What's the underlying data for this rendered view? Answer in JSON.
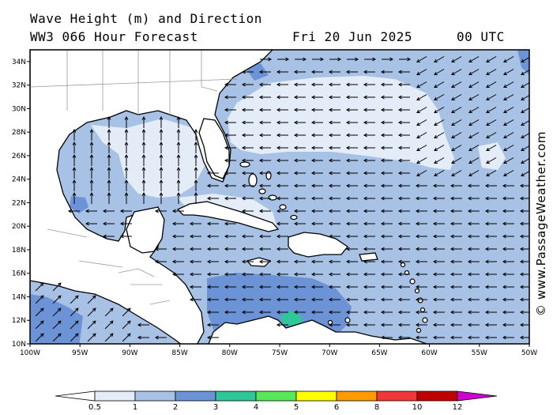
{
  "header": {
    "title": "Wave Height (m) and Direction",
    "model": "WW3 066 Hour Forecast",
    "date": "Fri 20 Jun 2025",
    "time": "00 UTC"
  },
  "credit": "© www.PassageWeather.com",
  "map": {
    "lon_range": [
      -100,
      -50
    ],
    "lat_range": [
      10,
      35
    ],
    "lat_ticks": [
      "10N",
      "12N",
      "14N",
      "16N",
      "18N",
      "20N",
      "22N",
      "24N",
      "26N",
      "28N",
      "30N",
      "32N",
      "34N"
    ],
    "lon_ticks": [
      "100W",
      "95W",
      "90W",
      "85W",
      "80W",
      "75W",
      "70W",
      "65W",
      "60W",
      "55W",
      "50W"
    ]
  },
  "legend": {
    "labels": [
      "0.5",
      "1",
      "2",
      "3",
      "4",
      "5",
      "6",
      "8",
      "10",
      "12"
    ],
    "colors": [
      "#ffffff",
      "#e4ecf7",
      "#a7c2e5",
      "#6b93d6",
      "#2fc79a",
      "#56e858",
      "#ffff00",
      "#ff9a00",
      "#f03838",
      "#c00000",
      "#d000d0"
    ]
  },
  "colors": {
    "land": "#ffffff",
    "wave_lt1": "#e4ecf7",
    "wave_1_2": "#a7c2e5",
    "wave_2_3": "#6b93d6",
    "wave_3_4": "#2fc79a"
  }
}
